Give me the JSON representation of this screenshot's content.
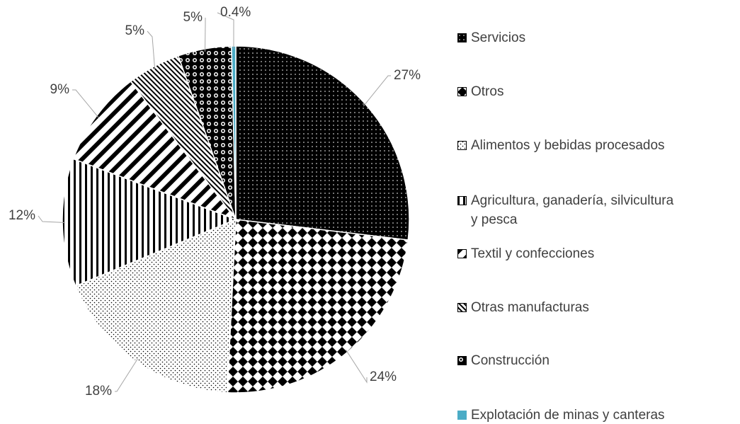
{
  "chart_data": {
    "type": "pie",
    "categories": [
      "Servicios",
      "Otros",
      "Alimentos y bebidas procesados",
      "Agricultura, ganadería, silvicultura y pesca",
      "Textil y confecciones",
      "Otras manufacturas",
      "Construcción",
      "Explotación de minas y canteras"
    ],
    "values": [
      27,
      24,
      18,
      12,
      9,
      5,
      5,
      0.4
    ],
    "value_labels": [
      "27%",
      "24%",
      "18%",
      "12%",
      "9%",
      "5%",
      "5%",
      "0.4%"
    ],
    "legend": "right"
  }
}
